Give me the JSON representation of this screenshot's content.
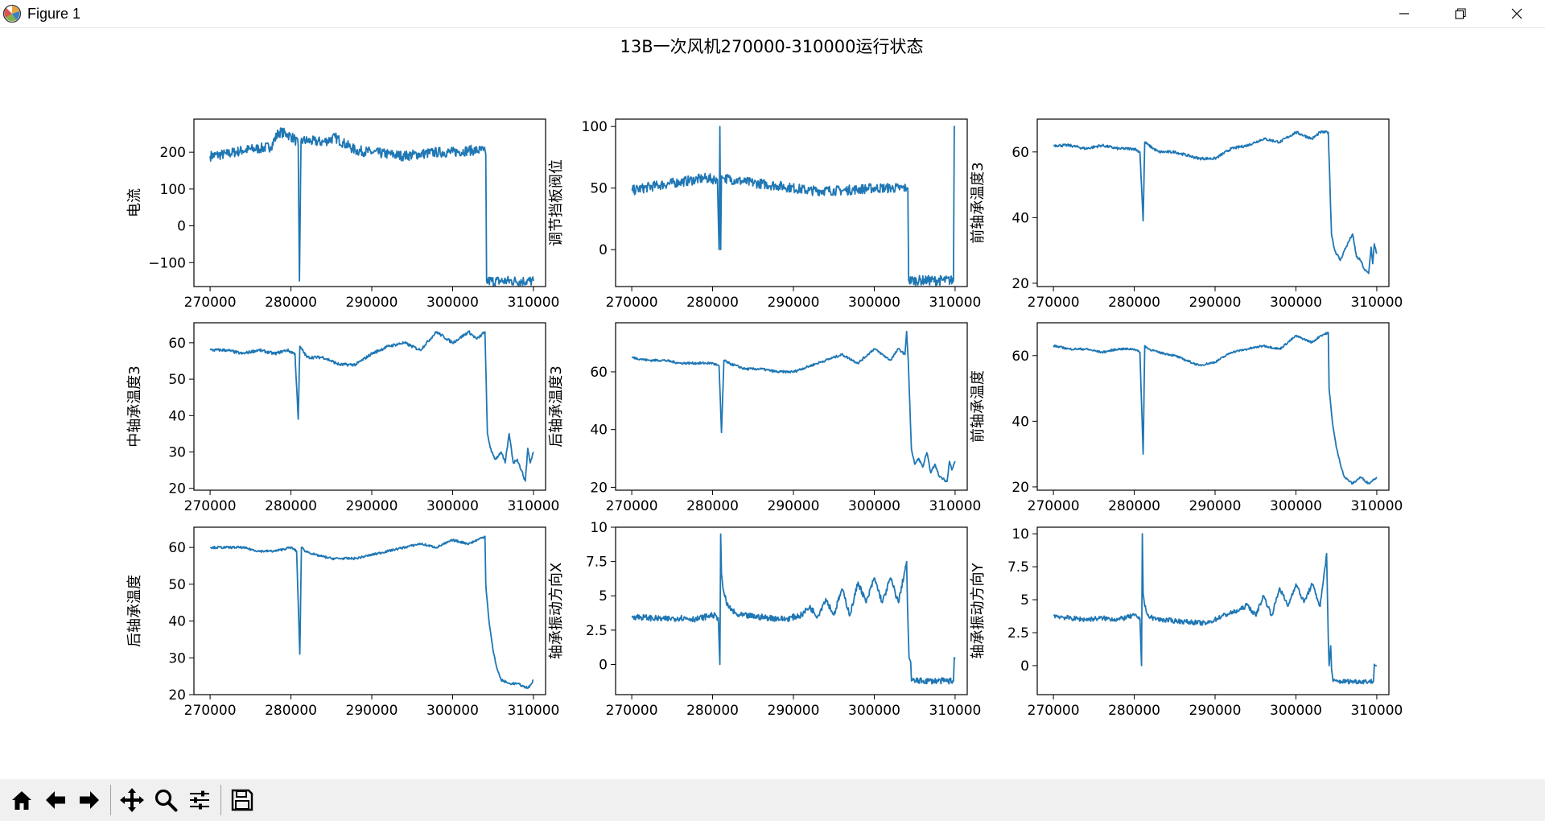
{
  "window": {
    "title": "Figure 1"
  },
  "figure_title": "13B一次风机270000-310000运行状态",
  "toolbar": {
    "items": [
      "home-icon",
      "back-arrow-icon",
      "forward-arrow-icon",
      "pan-icon",
      "zoom-icon",
      "configure-subplots-icon",
      "save-icon"
    ]
  },
  "colors": {
    "line": "#1f77b4",
    "frame": "#000000",
    "toolbar_bg": "#f0f0f0"
  },
  "chart_data": [
    {
      "type": "line",
      "ylabel": "电流",
      "xlim": [
        268000,
        311500
      ],
      "ylim": [
        -165,
        290
      ],
      "xticks": [
        270000,
        280000,
        290000,
        300000,
        310000
      ],
      "yticks": [
        -100,
        0,
        100,
        200
      ],
      "noise": 14,
      "x": [
        270000,
        272000,
        274000,
        276000,
        277500,
        278500,
        279500,
        280500,
        280900,
        281050,
        281250,
        281500,
        282500,
        284000,
        285500,
        286500,
        288000,
        290000,
        292000,
        294000,
        296000,
        298000,
        300000,
        302000,
        303800,
        304100,
        304200,
        310000
      ],
      "y": [
        190,
        195,
        205,
        210,
        215,
        255,
        250,
        235,
        220,
        -150,
        230,
        232,
        230,
        228,
        240,
        225,
        205,
        200,
        195,
        190,
        195,
        200,
        200,
        205,
        205,
        195,
        -150,
        -150
      ]
    },
    {
      "type": "line",
      "ylabel": "调节挡板阀位",
      "xlim": [
        268000,
        311500
      ],
      "ylim": [
        -30,
        106
      ],
      "xticks": [
        270000,
        280000,
        290000,
        300000,
        310000
      ],
      "yticks": [
        0,
        50,
        100
      ],
      "noise": 4,
      "x": [
        270000,
        273000,
        276000,
        279000,
        280600,
        280800,
        280900,
        281000,
        281100,
        281300,
        281500,
        284000,
        288000,
        292000,
        296000,
        300000,
        303000,
        304000,
        304150,
        304250,
        309800,
        309900,
        310000
      ],
      "y": [
        48,
        52,
        55,
        58,
        57,
        0,
        100,
        0,
        60,
        58,
        58,
        55,
        52,
        48,
        48,
        50,
        50,
        50,
        50,
        -25,
        -25,
        100,
        100
      ]
    },
    {
      "type": "line",
      "ylabel": "前轴承温度3",
      "xlim": [
        268000,
        311500
      ],
      "ylim": [
        19,
        70
      ],
      "xticks": [
        270000,
        280000,
        290000,
        300000,
        310000
      ],
      "yticks": [
        20,
        40,
        60
      ],
      "noise": 0.4,
      "x": [
        270000,
        272000,
        274000,
        276000,
        278000,
        280000,
        280700,
        281100,
        281300,
        281800,
        283000,
        285000,
        288000,
        290000,
        292000,
        294000,
        296000,
        298000,
        300000,
        302000,
        303000,
        304000,
        304400,
        304800,
        305500,
        306000,
        307000,
        307500,
        308000,
        308500,
        309000,
        309300,
        309500,
        309700,
        310000
      ],
      "y": [
        62,
        62,
        61,
        62,
        61,
        61,
        60,
        39,
        63,
        62,
        60,
        60,
        58,
        58,
        61,
        62,
        64,
        63,
        66,
        64,
        66,
        66,
        35,
        30,
        27,
        30,
        35,
        28,
        27,
        24,
        23,
        31,
        26,
        32,
        29
      ]
    },
    {
      "type": "line",
      "ylabel": "中轴承温度3",
      "xlim": [
        268000,
        311500
      ],
      "ylim": [
        19.5,
        65.5
      ],
      "xticks": [
        270000,
        280000,
        290000,
        300000,
        310000
      ],
      "yticks": [
        20,
        30,
        40,
        50,
        60
      ],
      "noise": 0.4,
      "x": [
        270000,
        272000,
        274000,
        276000,
        278000,
        279500,
        280500,
        280900,
        281100,
        281400,
        282000,
        284000,
        286000,
        288000,
        290000,
        292000,
        294000,
        296000,
        298000,
        300000,
        302000,
        303000,
        304000,
        304300,
        304800,
        305300,
        306000,
        306500,
        307000,
        307500,
        308000,
        308500,
        309000,
        309300,
        309600,
        310000
      ],
      "y": [
        58,
        58,
        57,
        58,
        57,
        58,
        57,
        39,
        59,
        58,
        56,
        56,
        54,
        54,
        57,
        59,
        60,
        58,
        63,
        60,
        63,
        61,
        63,
        35,
        30,
        28,
        30,
        27,
        35,
        27,
        28,
        25,
        22,
        31,
        27,
        30
      ]
    },
    {
      "type": "line",
      "ylabel": "后轴承温度3",
      "xlim": [
        268000,
        311500
      ],
      "ylim": [
        19,
        77
      ],
      "xticks": [
        270000,
        280000,
        290000,
        300000,
        310000
      ],
      "yticks": [
        20,
        40,
        60
      ],
      "noise": 0.4,
      "x": [
        270000,
        272000,
        274000,
        276000,
        278000,
        280000,
        280800,
        281100,
        281400,
        282000,
        284000,
        286000,
        288000,
        290000,
        292000,
        294000,
        296000,
        298000,
        300000,
        302000,
        303000,
        303800,
        304000,
        304200,
        304600,
        305000,
        305500,
        306000,
        306500,
        307000,
        307500,
        308000,
        308500,
        309000,
        309300,
        309600,
        310000
      ],
      "y": [
        65,
        64,
        64,
        63,
        63,
        63,
        62,
        39,
        64,
        63,
        61,
        61,
        60,
        60,
        62,
        64,
        66,
        63,
        68,
        64,
        68,
        66,
        74,
        64,
        33,
        28,
        30,
        27,
        32,
        25,
        28,
        24,
        23,
        22,
        29,
        26,
        29
      ]
    },
    {
      "type": "line",
      "ylabel": "前轴承温度",
      "xlim": [
        268000,
        311500
      ],
      "ylim": [
        19,
        70
      ],
      "xticks": [
        270000,
        280000,
        290000,
        300000,
        310000
      ],
      "yticks": [
        20,
        40,
        60
      ],
      "noise": 0.3,
      "x": [
        270000,
        272000,
        274000,
        276000,
        278000,
        280000,
        280700,
        281100,
        281300,
        281800,
        283000,
        285000,
        288000,
        290000,
        292000,
        294000,
        296000,
        298000,
        300000,
        302000,
        303000,
        304000,
        304100,
        304500,
        305000,
        305500,
        306000,
        307000,
        308000,
        309000,
        309500,
        310000
      ],
      "y": [
        63,
        62,
        62,
        61,
        62,
        62,
        61,
        30,
        63,
        62,
        61,
        60,
        57,
        58,
        61,
        62,
        63,
        62,
        66,
        64,
        66,
        67,
        50,
        40,
        32,
        27,
        23,
        21,
        23,
        21,
        22,
        23
      ]
    },
    {
      "type": "line",
      "ylabel": "后轴承温度",
      "xlim": [
        268000,
        311500
      ],
      "ylim": [
        20,
        65.5
      ],
      "xticks": [
        270000,
        280000,
        290000,
        300000,
        310000
      ],
      "yticks": [
        20,
        30,
        40,
        50,
        60
      ],
      "noise": 0.3,
      "x": [
        270000,
        272000,
        274000,
        276000,
        278000,
        280000,
        280700,
        281100,
        281300,
        281800,
        283000,
        285000,
        288000,
        290000,
        292000,
        294000,
        296000,
        298000,
        300000,
        302000,
        303000,
        304000,
        304100,
        304500,
        305000,
        305500,
        306000,
        307000,
        308000,
        309000,
        309500,
        310000
      ],
      "y": [
        60,
        60,
        60,
        59,
        59,
        60,
        59,
        31,
        60,
        59,
        58,
        57,
        57,
        58,
        59,
        60,
        61,
        60,
        62,
        61,
        62,
        63,
        50,
        40,
        32,
        27,
        24,
        23,
        23,
        22,
        22,
        24
      ]
    },
    {
      "type": "line",
      "ylabel": "轴承振动方向X",
      "xlim": [
        268000,
        311500
      ],
      "ylim": [
        -2.2,
        10
      ],
      "xticks": [
        270000,
        280000,
        290000,
        300000,
        310000
      ],
      "yticks": [
        0,
        2.5,
        5,
        7.5,
        10
      ],
      "noise": 0.22,
      "x": [
        270000,
        272000,
        274000,
        276000,
        278000,
        280000,
        280700,
        280900,
        281000,
        281100,
        281300,
        281800,
        283000,
        285000,
        287000,
        289000,
        291000,
        292000,
        293000,
        294000,
        295000,
        296000,
        297000,
        298000,
        299000,
        300000,
        301000,
        302000,
        303000,
        304000,
        304100,
        304300,
        304500,
        304600,
        309800,
        309900,
        310000
      ],
      "y": [
        3.5,
        3.4,
        3.3,
        3.4,
        3.3,
        3.6,
        3.4,
        0,
        9.5,
        6.6,
        5.5,
        4.3,
        3.6,
        3.5,
        3.4,
        3.3,
        3.6,
        4.2,
        3.5,
        4.8,
        3.6,
        5.5,
        3.6,
        6.0,
        4.5,
        6.3,
        4.5,
        6.3,
        4.5,
        7.5,
        4.5,
        0.5,
        0.2,
        -1.2,
        -1.2,
        0.5,
        0.4
      ]
    },
    {
      "type": "line",
      "ylabel": "轴承振动方向Y",
      "xlim": [
        268000,
        311500
      ],
      "ylim": [
        -2.2,
        10.5
      ],
      "xticks": [
        270000,
        280000,
        290000,
        300000,
        310000
      ],
      "yticks": [
        0,
        2.5,
        5,
        7.5,
        10
      ],
      "noise": 0.18,
      "x": [
        270000,
        272000,
        274000,
        276000,
        278000,
        280000,
        280700,
        280900,
        281000,
        281100,
        281300,
        281800,
        283000,
        285000,
        287000,
        289000,
        291000,
        292000,
        293000,
        294000,
        295000,
        296000,
        297000,
        298000,
        299000,
        300000,
        301000,
        302000,
        303000,
        303800,
        304000,
        304100,
        304300,
        304400,
        304600,
        309600,
        309700,
        309800,
        310000
      ],
      "y": [
        3.8,
        3.6,
        3.5,
        3.6,
        3.5,
        3.8,
        3.6,
        0,
        10,
        5.5,
        4.5,
        3.7,
        3.5,
        3.4,
        3.3,
        3.2,
        3.8,
        4.0,
        4.2,
        4.6,
        3.8,
        5.3,
        3.8,
        5.9,
        4.5,
        6.2,
        4.8,
        6.2,
        4.5,
        8.5,
        2.0,
        0,
        1.5,
        -0.2,
        -1.2,
        -1.2,
        0.1,
        0.0,
        0.0
      ]
    }
  ]
}
